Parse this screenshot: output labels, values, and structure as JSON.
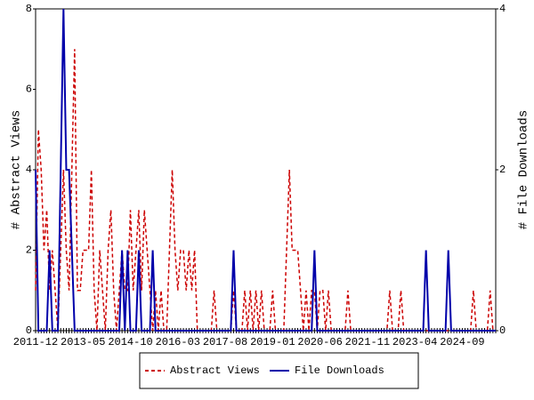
{
  "chart_data": {
    "type": "line",
    "y_label": "# Abstract Views",
    "y2_label": "# File Downloads",
    "categories": [
      "2011-12",
      null,
      null,
      null,
      null,
      null,
      null,
      null,
      null,
      null,
      null,
      null,
      null,
      null,
      null,
      null,
      null,
      "2013-05",
      null,
      null,
      null,
      null,
      null,
      null,
      null,
      null,
      null,
      null,
      null,
      null,
      null,
      null,
      null,
      null,
      "2014-10",
      null,
      null,
      null,
      null,
      null,
      null,
      null,
      null,
      null,
      null,
      null,
      null,
      null,
      null,
      null,
      null,
      "2016-03",
      null,
      null,
      null,
      null,
      null,
      null,
      null,
      null,
      null,
      null,
      null,
      null,
      null,
      null,
      null,
      null,
      "2017-08",
      null,
      null,
      null,
      null,
      null,
      null,
      null,
      null,
      null,
      null,
      null,
      null,
      null,
      null,
      null,
      null,
      "2019-01",
      null,
      null,
      null,
      null,
      null,
      null,
      null,
      null,
      null,
      null,
      null,
      null,
      null,
      null,
      null,
      null,
      "2020-06",
      null,
      null,
      null,
      null,
      null,
      null,
      null,
      null,
      null,
      null,
      null,
      null,
      null,
      null,
      null,
      null,
      "2021-11",
      null,
      null,
      null,
      null,
      null,
      null,
      null,
      null,
      null,
      null,
      null,
      null,
      null,
      null,
      null,
      null,
      "2023-04",
      null,
      null,
      null,
      null,
      null,
      null,
      null,
      null,
      null,
      null,
      null,
      null,
      null,
      null,
      null,
      null,
      "2024-09",
      null,
      null,
      null,
      null,
      null,
      null,
      null,
      null,
      null,
      null,
      null,
      null
    ],
    "series": [
      {
        "name": "Abstract Views",
        "color": "#cc0000",
        "dashed": true,
        "values": [
          1,
          5,
          4,
          2,
          3,
          1,
          2,
          1,
          0,
          2,
          4,
          2,
          1,
          4,
          7,
          1,
          1,
          2,
          2,
          2,
          4,
          1,
          0,
          2,
          1,
          0,
          2,
          3,
          1,
          0,
          1,
          2,
          1,
          1,
          3,
          1,
          2,
          3,
          1,
          3,
          2,
          1,
          0,
          1,
          0,
          1,
          0,
          0,
          2,
          4,
          2,
          1,
          2,
          2,
          1,
          2,
          1,
          2,
          0,
          0,
          0,
          0,
          0,
          0,
          1,
          0,
          0,
          0,
          0,
          0,
          0,
          1,
          0,
          0,
          0,
          1,
          0,
          1,
          0,
          1,
          0,
          1,
          0,
          0,
          0,
          1,
          0,
          0,
          0,
          0,
          2,
          4,
          2,
          2,
          2,
          1,
          0,
          1,
          0,
          1,
          1,
          0,
          1,
          1,
          0,
          1,
          0,
          0,
          0,
          0,
          0,
          0,
          1,
          0,
          0,
          0,
          0,
          0,
          0,
          0,
          0,
          0,
          0,
          0,
          0,
          0,
          0,
          1,
          0,
          0,
          0,
          1,
          0,
          0,
          0,
          0,
          0,
          0,
          0,
          0,
          0,
          0,
          0,
          0,
          0,
          0,
          0,
          0,
          0,
          0,
          0,
          0,
          0,
          0,
          0,
          0,
          0,
          1,
          0,
          0,
          0,
          0,
          0,
          1,
          0,
          0
        ]
      },
      {
        "name": "File Downloads",
        "color": "#0000aa",
        "dashed": false,
        "axis": "y2",
        "values": [
          2,
          0,
          0,
          0,
          0,
          1,
          0,
          0,
          0,
          2,
          4,
          2,
          2,
          1,
          0,
          0,
          0,
          0,
          0,
          0,
          0,
          0,
          0,
          0,
          0,
          0,
          0,
          0,
          0,
          0,
          0,
          1,
          0,
          1,
          0,
          0,
          0,
          1,
          0,
          0,
          0,
          0,
          1,
          0,
          0,
          0,
          0,
          0,
          0,
          0,
          0,
          0,
          0,
          0,
          0,
          0,
          0,
          0,
          0,
          0,
          0,
          0,
          0,
          0,
          0,
          0,
          0,
          0,
          0,
          0,
          0,
          1,
          0,
          0,
          0,
          0,
          0,
          0,
          0,
          0,
          0,
          0,
          0,
          0,
          0,
          0,
          0,
          0,
          0,
          0,
          0,
          0,
          0,
          0,
          0,
          0,
          0,
          0,
          0,
          0,
          1,
          0,
          0,
          0,
          0,
          0,
          0,
          0,
          0,
          0,
          0,
          0,
          0,
          0,
          0,
          0,
          0,
          0,
          0,
          0,
          0,
          0,
          0,
          0,
          0,
          0,
          0,
          0,
          0,
          0,
          0,
          0,
          0,
          0,
          0,
          0,
          0,
          0,
          0,
          0,
          1,
          0,
          0,
          0,
          0,
          0,
          0,
          0,
          1,
          0,
          0,
          0,
          0,
          0,
          0,
          0,
          0,
          0,
          0,
          0,
          0,
          0,
          0,
          0,
          0,
          0
        ]
      }
    ],
    "ylim": [
      0,
      8
    ],
    "yticks": [
      0,
      2,
      4,
      6,
      8
    ],
    "y2lim": [
      0,
      4
    ],
    "y2ticks": [
      0,
      2,
      4
    ]
  }
}
